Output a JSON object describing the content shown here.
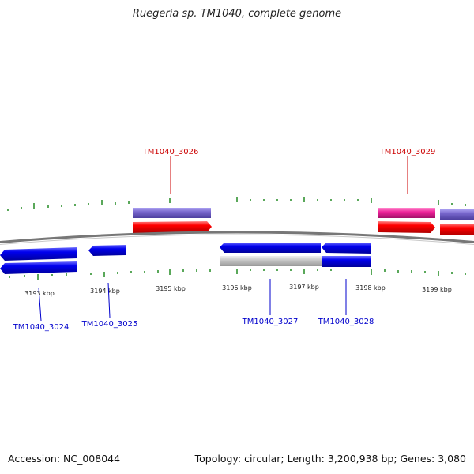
{
  "title": "Ruegeria sp. TM1040, complete genome",
  "footer": {
    "accession": "Accession: NC_008044",
    "summary": "Topology: circular; Length: 3,200,938 bp; Genes: 3,080"
  },
  "colors": {
    "cds_forward": "#ff0000",
    "cds_reverse": "#0000ee",
    "cds_grey": "#c8c8c8",
    "feature_purple": "#7766cc",
    "feature_pink": "#ee2299",
    "backbone": "#888888",
    "tick": "#228b22",
    "label_forward": "#cc0000",
    "label_reverse": "#0000cc"
  },
  "scale_labels": [
    "3193 kbp",
    "3194 kbp",
    "3195 kbp",
    "3196 kbp",
    "3197 kbp",
    "3198 kbp",
    "3199 kbp"
  ],
  "gene_labels_top": [
    "TM1040_3026",
    "TM1040_3029"
  ],
  "gene_labels_bottom": [
    "TM1040_3024",
    "TM1040_3025",
    "TM1040_3027",
    "TM1040_3028"
  ]
}
